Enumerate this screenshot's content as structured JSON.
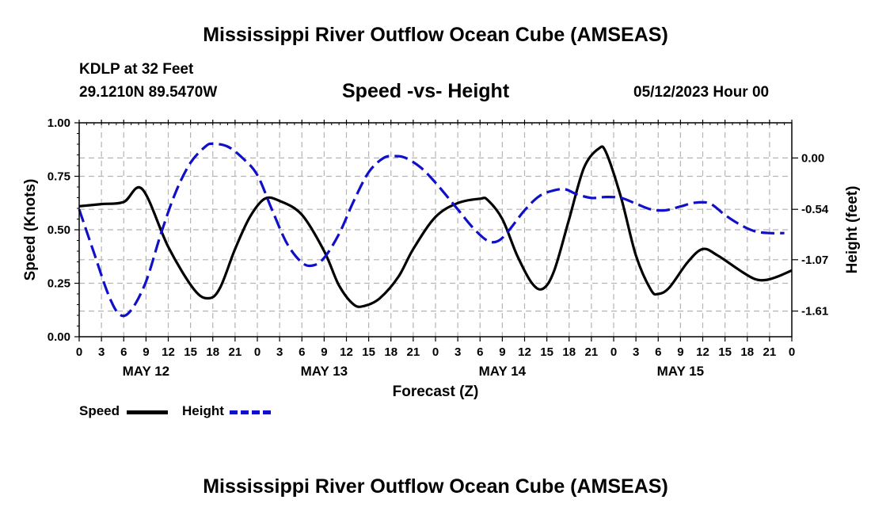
{
  "title_top": "Mississippi River Outflow Ocean Cube (AMSEAS)",
  "title_bottom": "Mississippi River Outflow Ocean Cube (AMSEAS)",
  "station": "KDLP at 32 Feet",
  "coords": "29.1210N  89.5470W",
  "timestamp": "05/12/2023 Hour 00",
  "legend": {
    "speed_label": "Speed",
    "height_label": "Height"
  },
  "colors": {
    "speed": "#000000",
    "height": "#1010c8",
    "grid": "#b4b4b4"
  },
  "chart_data": {
    "type": "line",
    "title": "Speed -vs- Height",
    "xlabel": "Forecast (Z)",
    "ylabel_left": "Speed (Knots)",
    "ylabel_right": "Height (feet)",
    "x_range_hours": [
      0,
      96
    ],
    "x_tick_step_hours": 3,
    "x_tick_labels": [
      "0",
      "3",
      "6",
      "9",
      "12",
      "15",
      "18",
      "21",
      "0",
      "3",
      "6",
      "9",
      "12",
      "15",
      "18",
      "21",
      "0",
      "3",
      "6",
      "9",
      "12",
      "15",
      "18",
      "21",
      "0",
      "3",
      "6",
      "9",
      "12",
      "15",
      "18",
      "21",
      "0"
    ],
    "day_labels": [
      {
        "label": "MAY 12",
        "hour": 9
      },
      {
        "label": "MAY 13",
        "hour": 33
      },
      {
        "label": "MAY 14",
        "hour": 57
      },
      {
        "label": "MAY 15",
        "hour": 81
      }
    ],
    "ylim_left": [
      0,
      1.0
    ],
    "yticks_left": [
      0.0,
      0.25,
      0.5,
      0.75,
      1.0
    ],
    "ytick_labels_left": [
      "0.00",
      "0.25",
      "0.50",
      "0.75",
      "1.00"
    ],
    "ylim_right": [
      -1.88,
      0.37
    ],
    "yticks_right": [
      0.0,
      -0.54,
      -1.07,
      -1.61
    ],
    "ytick_labels_right": [
      "0.00",
      "-0.54",
      "-1.07",
      "-1.61"
    ],
    "grid": true,
    "series": [
      {
        "name": "Speed",
        "axis": "left",
        "style": "solid",
        "points": [
          [
            0,
            0.61
          ],
          [
            3,
            0.62
          ],
          [
            6,
            0.63
          ],
          [
            8.5,
            0.69
          ],
          [
            12,
            0.42
          ],
          [
            15.5,
            0.22
          ],
          [
            17.5,
            0.18
          ],
          [
            19,
            0.23
          ],
          [
            21,
            0.41
          ],
          [
            23,
            0.56
          ],
          [
            25,
            0.645
          ],
          [
            27,
            0.635
          ],
          [
            30,
            0.57
          ],
          [
            33,
            0.4
          ],
          [
            35,
            0.24
          ],
          [
            37,
            0.15
          ],
          [
            38.5,
            0.145
          ],
          [
            40.5,
            0.18
          ],
          [
            43,
            0.28
          ],
          [
            45,
            0.41
          ],
          [
            48,
            0.56
          ],
          [
            51,
            0.625
          ],
          [
            54,
            0.645
          ],
          [
            55,
            0.64
          ],
          [
            57,
            0.55
          ],
          [
            59,
            0.38
          ],
          [
            61,
            0.25
          ],
          [
            62.5,
            0.225
          ],
          [
            64,
            0.31
          ],
          [
            66,
            0.55
          ],
          [
            68,
            0.79
          ],
          [
            70,
            0.88
          ],
          [
            71,
            0.86
          ],
          [
            73,
            0.65
          ],
          [
            75,
            0.38
          ],
          [
            77,
            0.22
          ],
          [
            78,
            0.2
          ],
          [
            79.5,
            0.23
          ],
          [
            82,
            0.35
          ],
          [
            84,
            0.41
          ],
          [
            86,
            0.38
          ],
          [
            89,
            0.31
          ],
          [
            91,
            0.27
          ],
          [
            92.5,
            0.265
          ],
          [
            94,
            0.28
          ],
          [
            96,
            0.31
          ]
        ]
      },
      {
        "name": "Height",
        "axis": "right",
        "style": "dashed",
        "points": [
          [
            0,
            -0.54
          ],
          [
            2,
            -1.0
          ],
          [
            4,
            -1.45
          ],
          [
            5.5,
            -1.65
          ],
          [
            7,
            -1.6
          ],
          [
            9,
            -1.3
          ],
          [
            11,
            -0.8
          ],
          [
            13,
            -0.36
          ],
          [
            15,
            -0.05
          ],
          [
            17,
            0.12
          ],
          [
            18,
            0.15
          ],
          [
            20,
            0.12
          ],
          [
            22,
            0.0
          ],
          [
            24,
            -0.18
          ],
          [
            26,
            -0.55
          ],
          [
            28,
            -0.9
          ],
          [
            30,
            -1.1
          ],
          [
            31.5,
            -1.13
          ],
          [
            33,
            -1.05
          ],
          [
            35,
            -0.8
          ],
          [
            37,
            -0.45
          ],
          [
            39,
            -0.15
          ],
          [
            41,
            0.0
          ],
          [
            42.5,
            0.02
          ],
          [
            44,
            0.0
          ],
          [
            46,
            -0.1
          ],
          [
            48,
            -0.26
          ],
          [
            51,
            -0.54
          ],
          [
            53,
            -0.73
          ],
          [
            55,
            -0.87
          ],
          [
            56.5,
            -0.87
          ],
          [
            58,
            -0.75
          ],
          [
            60,
            -0.55
          ],
          [
            62,
            -0.4
          ],
          [
            64,
            -0.34
          ],
          [
            65.5,
            -0.33
          ],
          [
            67,
            -0.38
          ],
          [
            69,
            -0.42
          ],
          [
            71,
            -0.41
          ],
          [
            73,
            -0.42
          ],
          [
            75,
            -0.48
          ],
          [
            77,
            -0.54
          ],
          [
            79,
            -0.55
          ],
          [
            81,
            -0.51
          ],
          [
            83,
            -0.47
          ],
          [
            85,
            -0.48
          ],
          [
            87,
            -0.6
          ],
          [
            89,
            -0.7
          ],
          [
            91,
            -0.77
          ],
          [
            93,
            -0.79
          ],
          [
            95,
            -0.79
          ]
        ]
      }
    ]
  }
}
